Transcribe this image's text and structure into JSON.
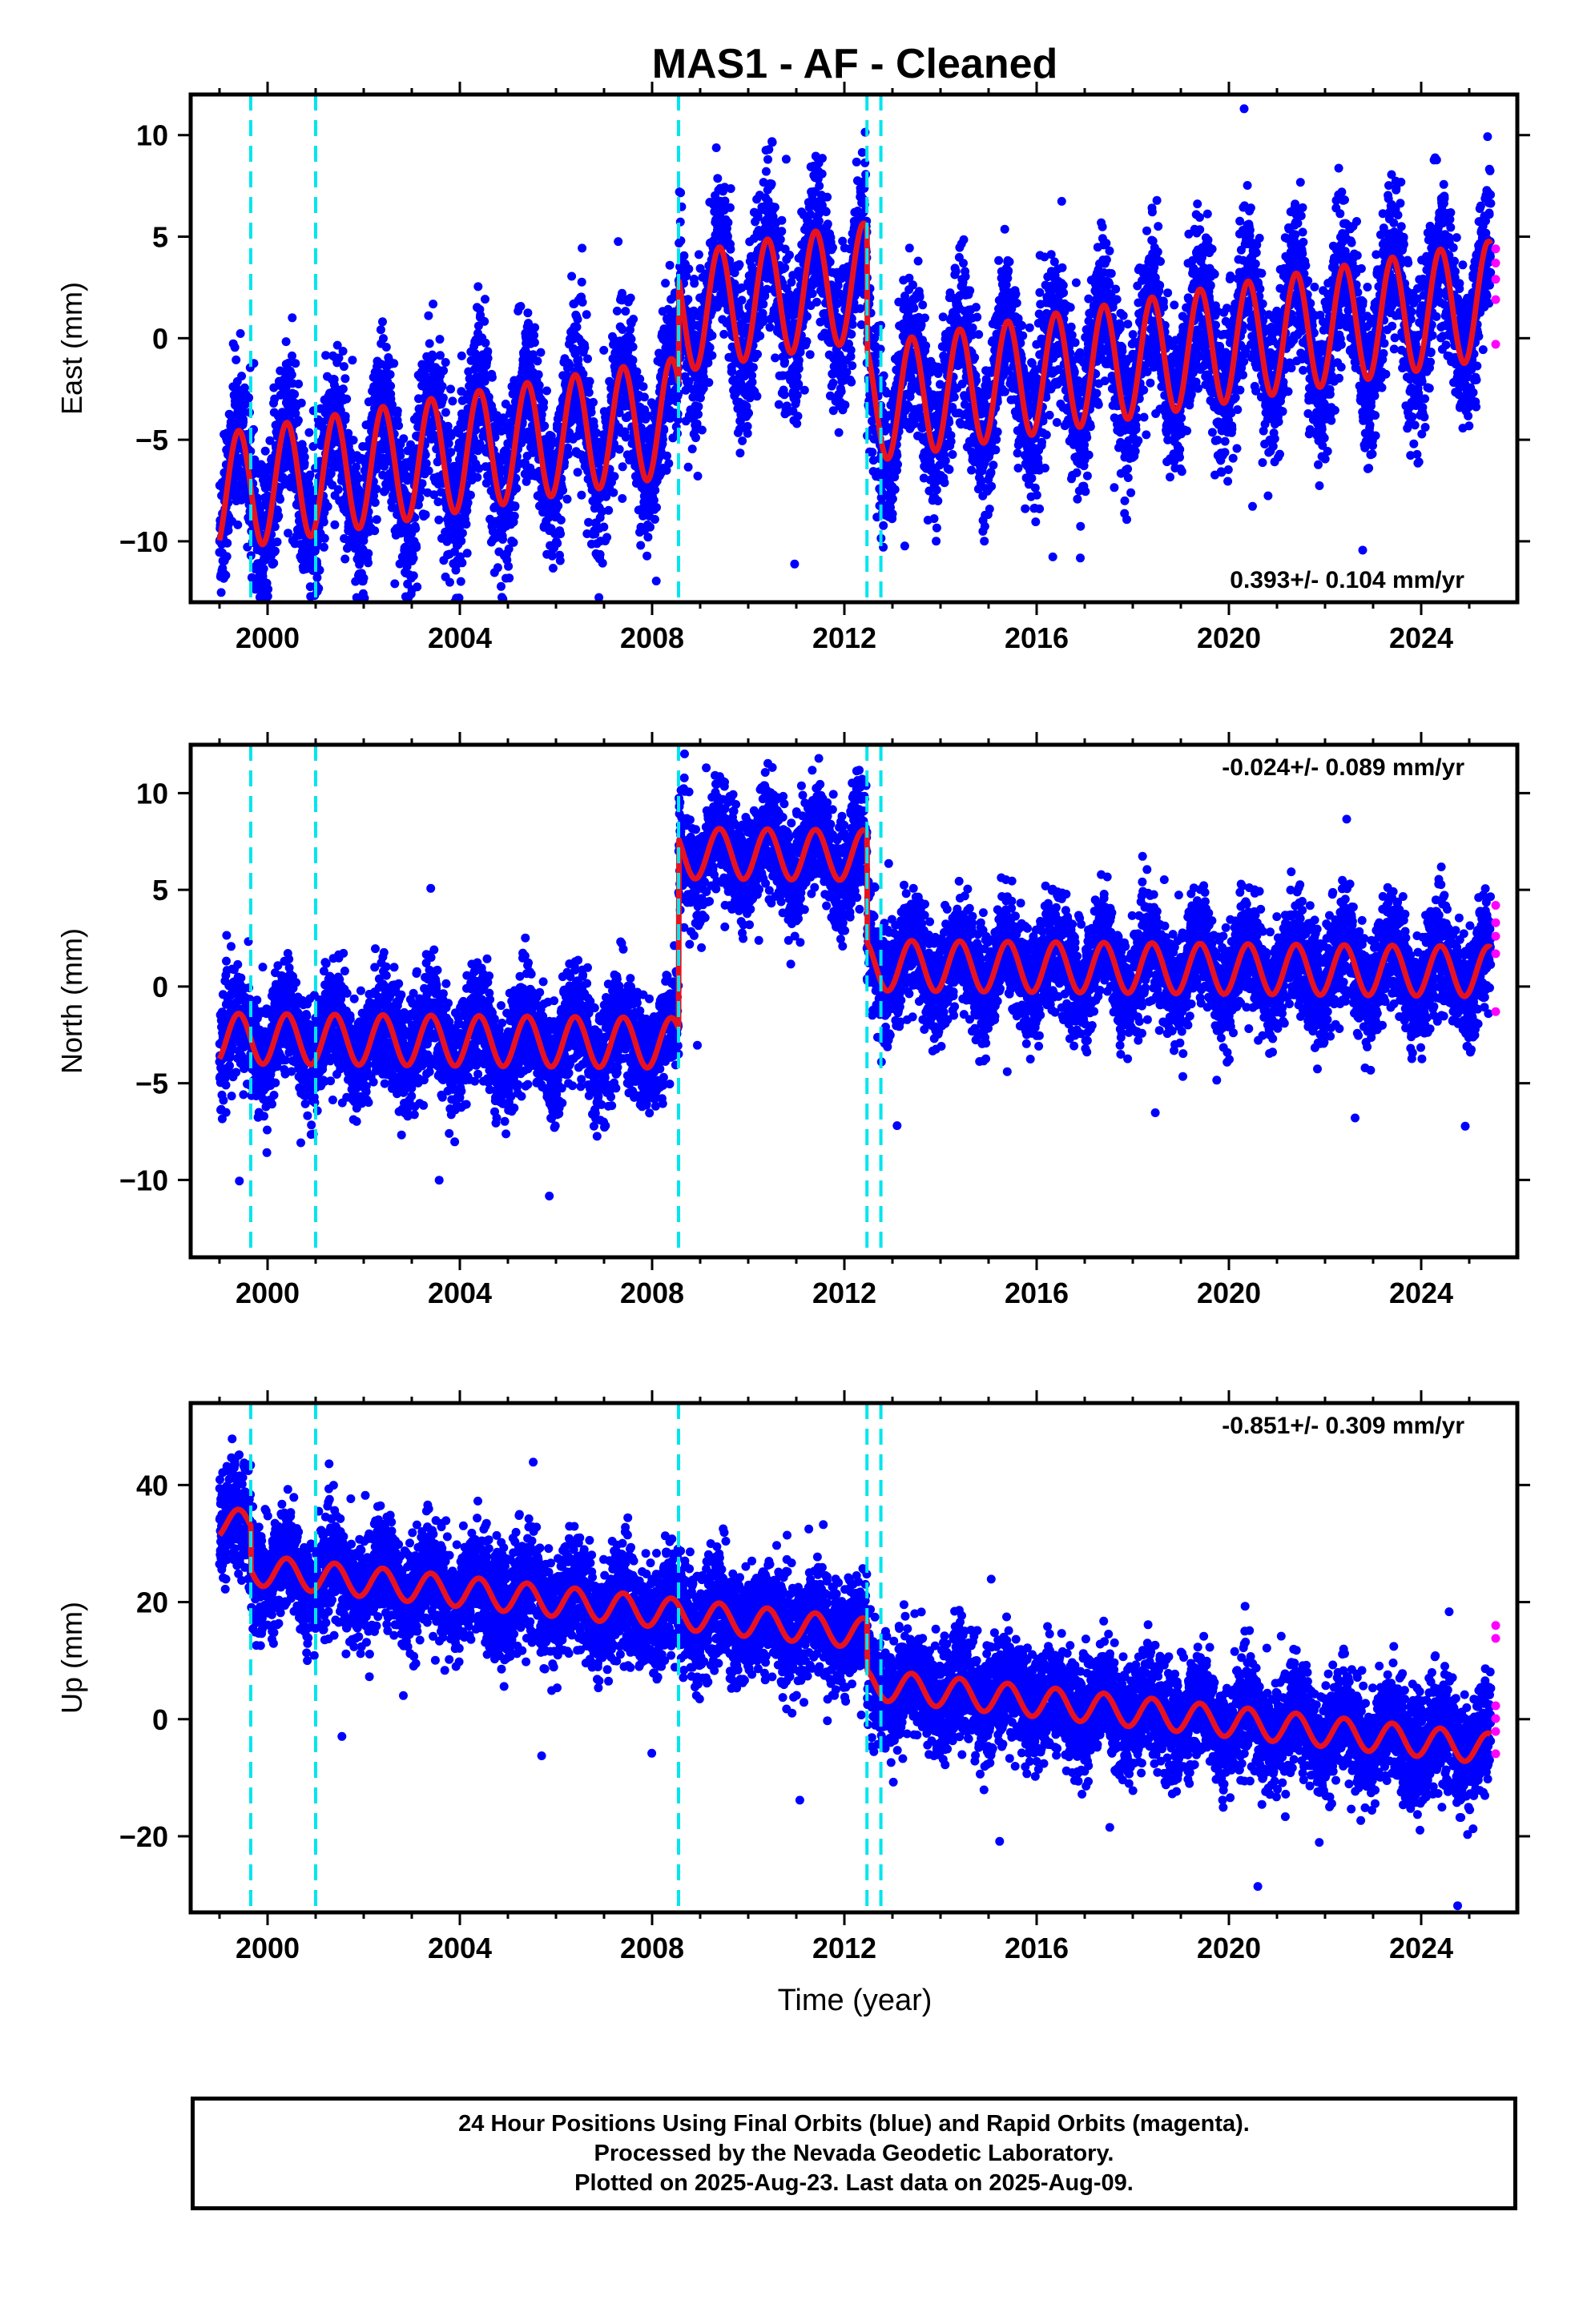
{
  "title": "MAS1  - AF - Cleaned",
  "xlabel": "Time (year)",
  "footer": {
    "line1": "24 Hour Positions Using Final Orbits (blue) and Rapid Orbits (magenta).",
    "line2": "Processed by the Nevada Geodetic Laboratory.",
    "line3": "Plotted on 2025-Aug-23. Last data on 2025-Aug-09."
  },
  "colors": {
    "final_orbits": "#0000ff",
    "rapid_orbits": "#ff00ff",
    "model": "#e8121e",
    "offsets": "#00e5ee",
    "frame": "#000000"
  },
  "chart_data": [
    {
      "type": "scatter",
      "component": "east",
      "ylabel": "East (mm)",
      "xlim": [
        1998.4,
        2026.0
      ],
      "ylim": [
        -13,
        12
      ],
      "xticks": [
        2000,
        2004,
        2008,
        2012,
        2016,
        2020,
        2024
      ],
      "yticks": [
        -10,
        -5,
        0,
        5,
        10
      ],
      "annotation": "0.393+/- 0.104 mm/yr",
      "annotation_position": "bottom-right",
      "offset_lines": [
        1999.65,
        2001.0,
        2008.55,
        2012.47,
        2012.76
      ],
      "series": [
        {
          "role": "final-orbits",
          "x_range": [
            1999.0,
            2025.45
          ],
          "trend_per_year": 0.393,
          "amplitude": 2.9,
          "noise": 1.9,
          "segments": [
            {
              "from": 1999.0,
              "to": 2008.55,
              "level": -2.5
            },
            {
              "from": 2008.55,
              "to": 2012.47,
              "level": 2.6
            },
            {
              "from": 2012.47,
              "to": 2025.45,
              "level": -3.4
            }
          ]
        },
        {
          "role": "rapid-orbits",
          "x": 2025.55,
          "values": [
            4.4,
            3.7,
            2.9,
            1.9,
            -0.3
          ]
        },
        {
          "role": "model",
          "x_range": [
            1999.0,
            2025.45
          ],
          "trend_per_year": 0.393,
          "amplitude": 2.9,
          "segments": [
            {
              "from": 1999.0,
              "to": 2008.55,
              "level": -2.5
            },
            {
              "from": 2008.55,
              "to": 2012.47,
              "level": 2.6
            },
            {
              "from": 2012.47,
              "to": 2025.45,
              "level": -3.4
            }
          ]
        }
      ]
    },
    {
      "type": "scatter",
      "component": "north",
      "ylabel": "North (mm)",
      "xlim": [
        1998.4,
        2026.0
      ],
      "ylim": [
        -14,
        12.5
      ],
      "xticks": [
        2000,
        2004,
        2008,
        2012,
        2016,
        2020,
        2024
      ],
      "yticks": [
        -10,
        -5,
        0,
        5,
        10
      ],
      "annotation": "-0.024+/- 0.089 mm/yr",
      "annotation_position": "top-right",
      "offset_lines": [
        1999.65,
        2001.0,
        2008.55,
        2012.47,
        2012.76
      ],
      "series": [
        {
          "role": "final-orbits",
          "x_range": [
            1999.0,
            2025.45
          ],
          "trend_per_year": -0.024,
          "amplitude": 1.3,
          "noise": 1.4,
          "segments": [
            {
              "from": 1999.0,
              "to": 2008.55,
              "level": -3.0
            },
            {
              "from": 2008.55,
              "to": 2012.47,
              "level": 6.8
            },
            {
              "from": 2012.47,
              "to": 2025.45,
              "level": 1.1
            }
          ]
        },
        {
          "role": "rapid-orbits",
          "x": 2025.55,
          "values": [
            4.2,
            3.3,
            2.6,
            1.7,
            -1.3
          ]
        },
        {
          "role": "model",
          "x_range": [
            1999.0,
            2025.45
          ],
          "trend_per_year": -0.024,
          "amplitude": 1.3,
          "segments": [
            {
              "from": 1999.0,
              "to": 2008.55,
              "level": -3.0
            },
            {
              "from": 2008.55,
              "to": 2012.47,
              "level": 6.8
            },
            {
              "from": 2012.47,
              "to": 2025.45,
              "level": 1.1
            }
          ]
        }
      ]
    },
    {
      "type": "scatter",
      "component": "up",
      "ylabel": "Up (mm)",
      "xlim": [
        1998.4,
        2026.0
      ],
      "ylim": [
        -33,
        54
      ],
      "xticks": [
        2000,
        2004,
        2008,
        2012,
        2016,
        2020,
        2024
      ],
      "yticks": [
        -20,
        0,
        20,
        40
      ],
      "annotation": "-0.851+/- 0.309 mm/yr",
      "annotation_position": "top-right",
      "offset_lines": [
        1999.65,
        2001.0,
        2008.55,
        2012.47,
        2012.76
      ],
      "series": [
        {
          "role": "final-orbits",
          "x_range": [
            1999.0,
            2025.45
          ],
          "trend_per_year": -0.851,
          "amplitude": 2.6,
          "noise": 4.6,
          "segments": [
            {
              "from": 1999.0,
              "to": 1999.65,
              "level": 22.5
            },
            {
              "from": 1999.65,
              "to": 2012.47,
              "level": 15.0
            },
            {
              "from": 2012.47,
              "to": 2025.45,
              "level": 6.4
            }
          ]
        },
        {
          "role": "rapid-orbits",
          "x": 2025.55,
          "values": [
            16.0,
            13.8,
            2.3,
            0.1,
            -2.1,
            -5.9
          ]
        },
        {
          "role": "model",
          "x_range": [
            1999.0,
            2025.45
          ],
          "trend_per_year": -0.851,
          "amplitude": 2.6,
          "segments": [
            {
              "from": 1999.0,
              "to": 1999.65,
              "level": 22.5
            },
            {
              "from": 1999.65,
              "to": 2012.47,
              "level": 15.0
            },
            {
              "from": 2012.47,
              "to": 2025.45,
              "level": 6.4
            }
          ]
        }
      ]
    }
  ]
}
